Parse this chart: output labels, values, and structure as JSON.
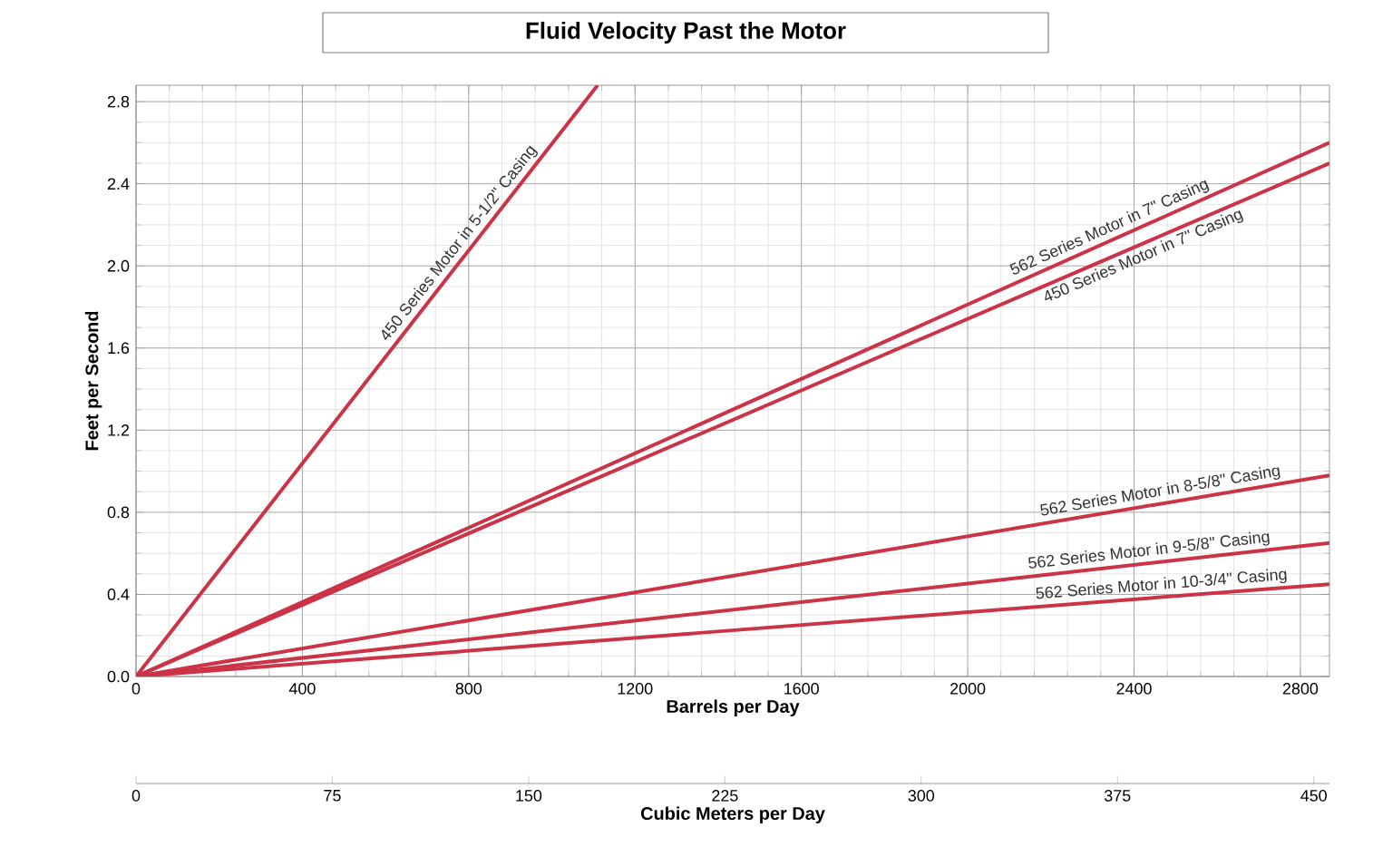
{
  "chart_data": {
    "type": "line",
    "title": "Fluid Velocity Past the Motor",
    "xlabel": "Barrels per Day",
    "ylabel": "Feet per Second",
    "x2label": "Cubic Meters per Day",
    "xlim": [
      0,
      2870
    ],
    "xticks": [
      0,
      400,
      800,
      1200,
      1600,
      2000,
      2400,
      2800
    ],
    "ylim": [
      0,
      2.88
    ],
    "yticks": [
      {
        "value": 0,
        "label": "0.0"
      },
      {
        "value": 0.4,
        "label": "0.4"
      },
      {
        "value": 0.8,
        "label": "0.8"
      },
      {
        "value": 1.2,
        "label": "1.2"
      },
      {
        "value": 1.6,
        "label": "1.6"
      },
      {
        "value": 2.0,
        "label": "2.0"
      },
      {
        "value": 2.4,
        "label": "2.4"
      },
      {
        "value": 2.8,
        "label": "2.8"
      }
    ],
    "x2lim": [
      0,
      456
    ],
    "x2ticks": [
      0,
      75,
      150,
      225,
      300,
      375,
      450
    ],
    "grid": true,
    "marker": "none",
    "line_style": "solid",
    "series": [
      {
        "name": "450 Series Motor in 5-1/2\" Casing",
        "color": "#cc3347",
        "x": [
          0,
          1110
        ],
        "values": [
          0,
          2.88
        ]
      },
      {
        "name": "562 Series Motor in 7\" Casing",
        "color": "#cc3347",
        "x": [
          0,
          2870
        ],
        "values": [
          0,
          2.6
        ]
      },
      {
        "name": "450 Series Motor in 7\" Casing",
        "color": "#cc3347",
        "x": [
          0,
          2870
        ],
        "values": [
          0,
          2.5
        ]
      },
      {
        "name": "562 Series Motor in 8-5/8\" Casing",
        "color": "#cc3347",
        "x": [
          0,
          2870
        ],
        "values": [
          0,
          0.98
        ]
      },
      {
        "name": "562 Series Motor in 9-5/8\" Casing",
        "color": "#cc3347",
        "x": [
          0,
          2870
        ],
        "values": [
          0,
          0.65
        ]
      },
      {
        "name": "562 Series Motor in 10-3/4\" Casing",
        "color": "#cc3347",
        "x": [
          0,
          2870
        ],
        "values": [
          0,
          0.45
        ]
      }
    ]
  }
}
